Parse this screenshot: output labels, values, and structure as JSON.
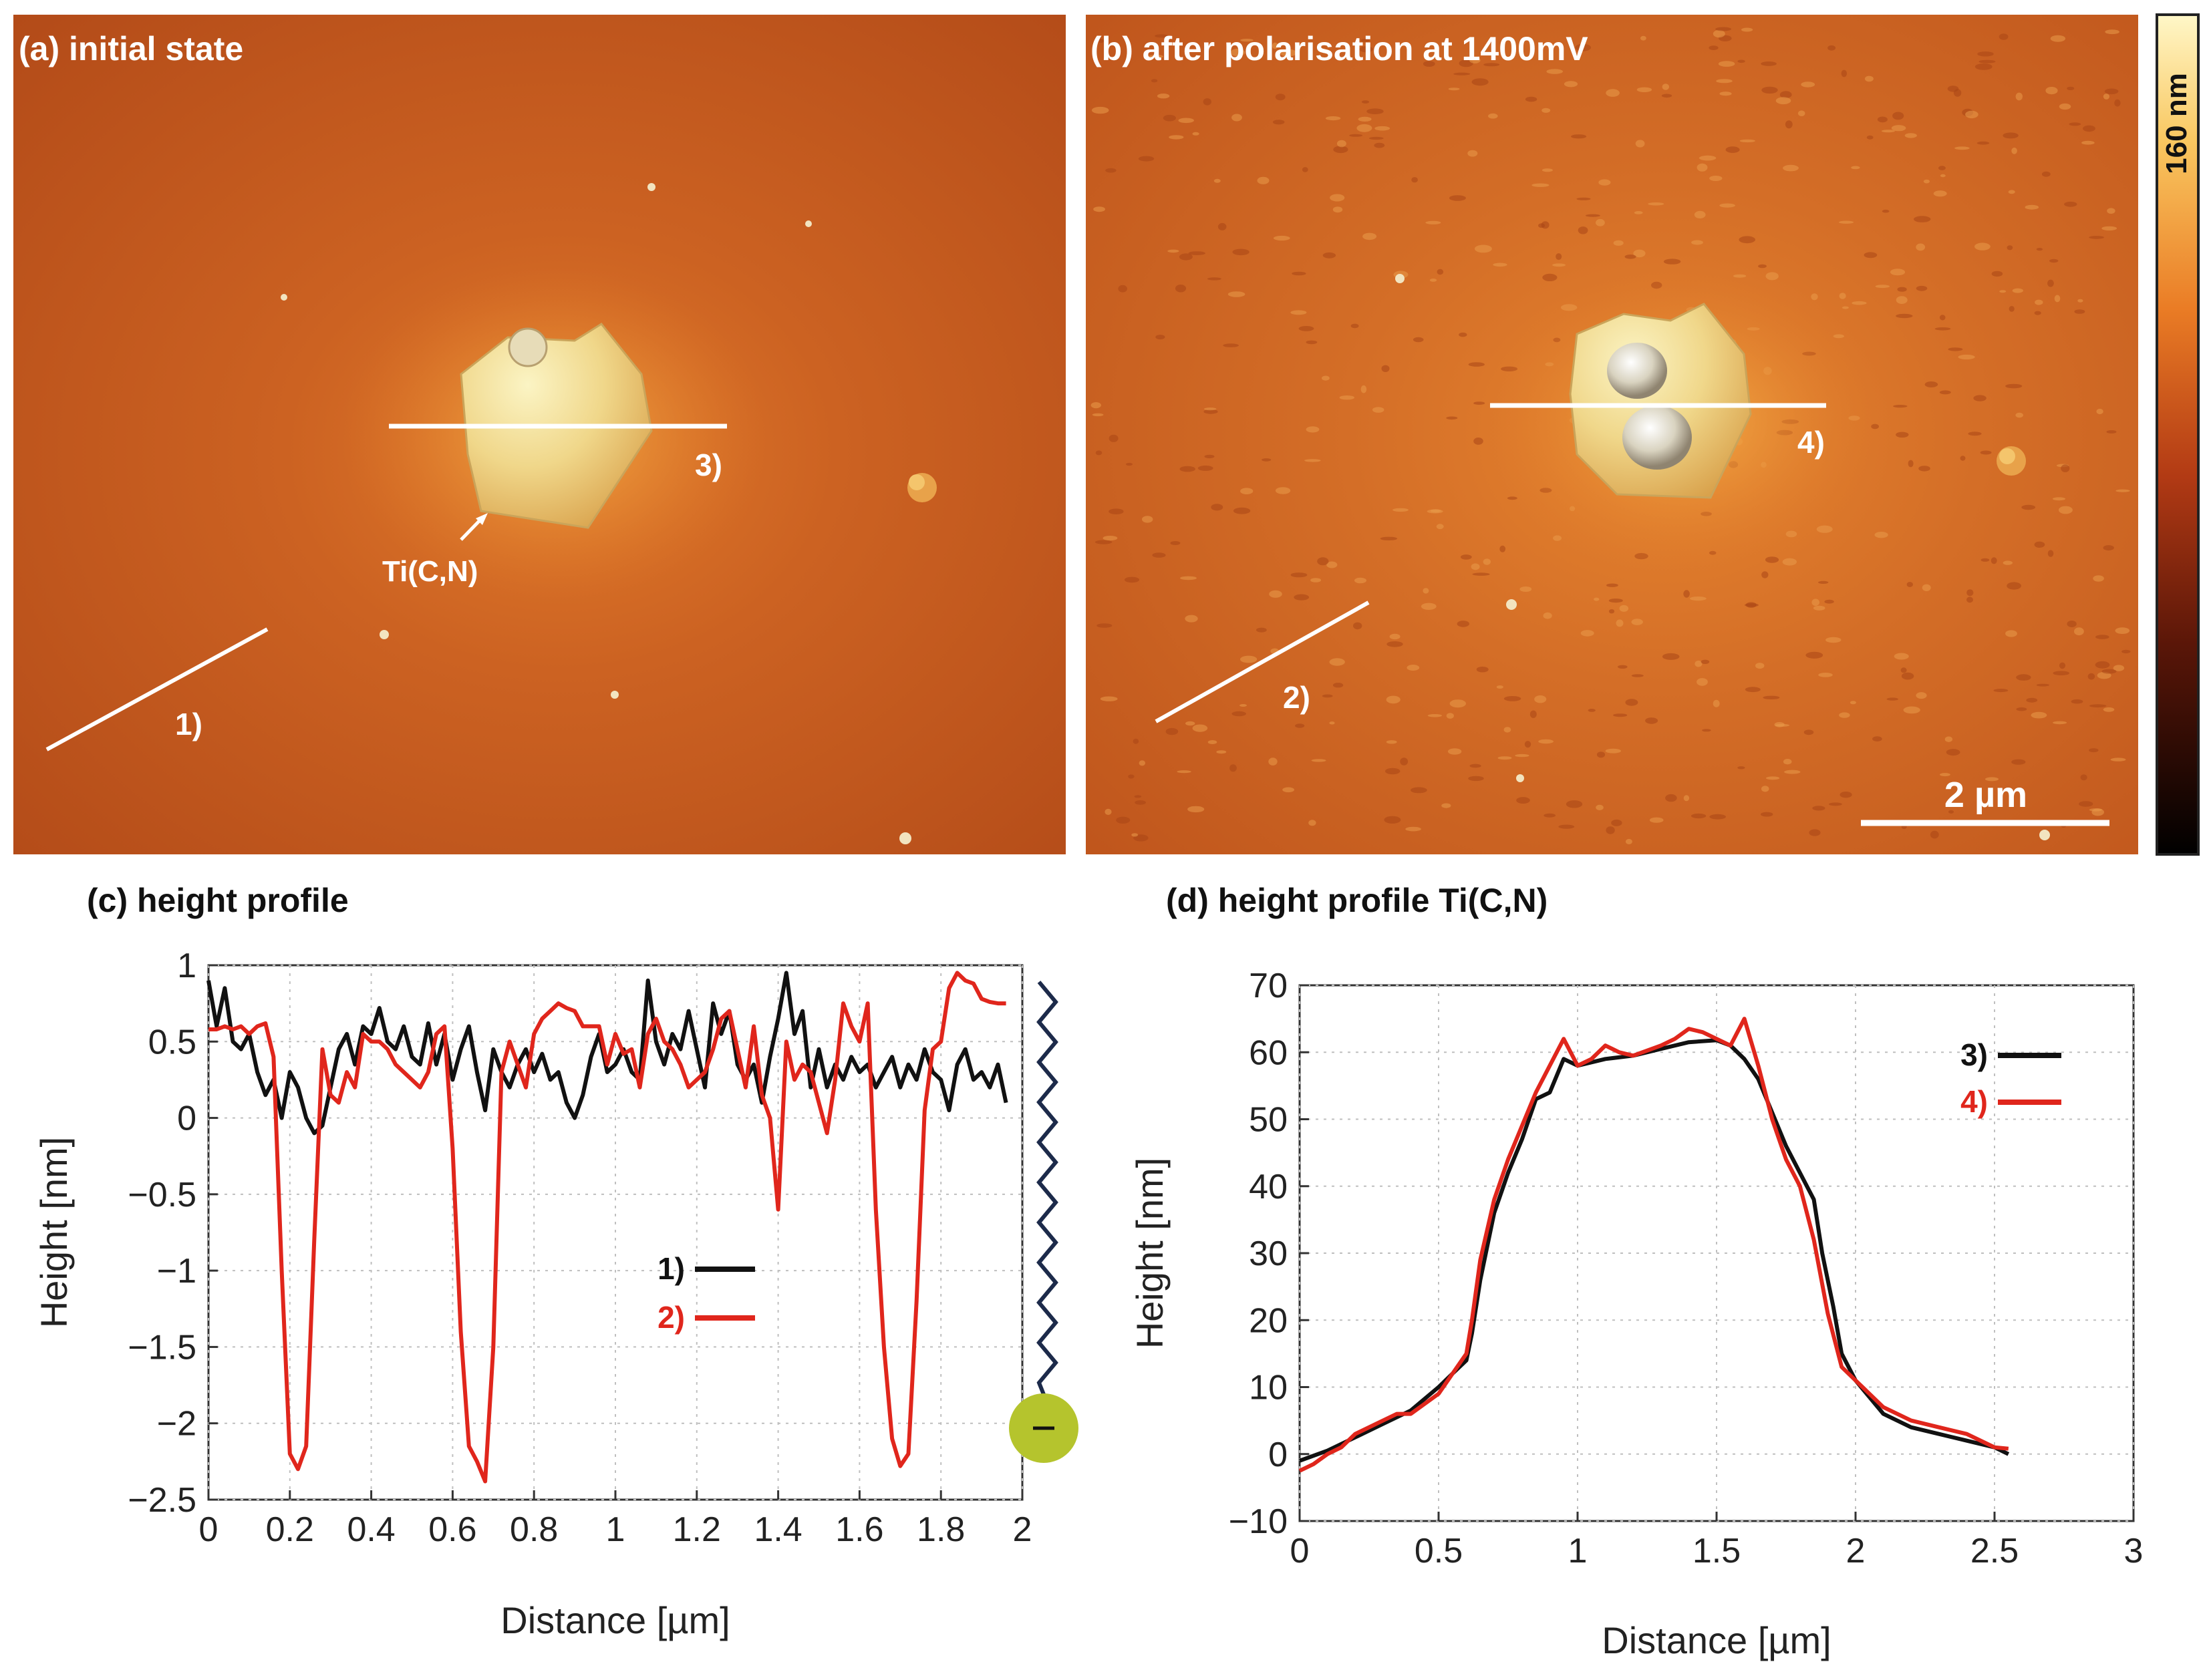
{
  "panels": {
    "a": {
      "label": "(a) initial state",
      "annotation": "Ti(C,N)",
      "line1": "1)",
      "line3": "3)"
    },
    "b": {
      "label": "(b) after polarisation at 1400mV",
      "line2": "2)",
      "line4": "4)",
      "scalebar": "2 µm"
    },
    "colorbar": {
      "label": "160 nm"
    },
    "c": {
      "label": "(c) height profile"
    },
    "d": {
      "label": "(d) height profile Ti(C,N)"
    }
  },
  "colors": {
    "black": "#111111",
    "red": "#e0261c",
    "afm_dark": "#b8521c",
    "afm_light": "#f7e9a0",
    "ball": "#b5c42d",
    "zigzag": "#1c2a4a"
  },
  "chart_data": [
    {
      "type": "line",
      "title": "(c) height profile",
      "xlabel": "Distance [µm]",
      "ylabel": "Height [nm]",
      "xlim": [
        0,
        2
      ],
      "ylim": [
        -2.5,
        1
      ],
      "xticks": [
        0,
        0.2,
        0.4,
        0.6,
        0.8,
        1,
        1.2,
        1.4,
        1.6,
        1.8,
        2
      ],
      "xtick_labels": [
        "0",
        "0.2",
        "0.4",
        "0.6",
        "0.8",
        "1",
        "1.2",
        "1.4",
        "1.6",
        "1.8",
        "2"
      ],
      "yticks": [
        1,
        0.5,
        0,
        -0.5,
        -1,
        -1.5,
        -2,
        -2.5
      ],
      "ytick_labels": [
        "1",
        "0.5",
        "0",
        "−0.5",
        "−1",
        "−1.5",
        "−2",
        "−2.5"
      ],
      "legend": "center-right",
      "series": [
        {
          "name": "1)",
          "color": "#111111",
          "x": [
            0,
            0.02,
            0.04,
            0.06,
            0.08,
            0.1,
            0.12,
            0.14,
            0.16,
            0.18,
            0.2,
            0.22,
            0.24,
            0.26,
            0.28,
            0.3,
            0.32,
            0.34,
            0.36,
            0.38,
            0.4,
            0.42,
            0.44,
            0.46,
            0.48,
            0.5,
            0.52,
            0.54,
            0.56,
            0.58,
            0.6,
            0.62,
            0.64,
            0.66,
            0.68,
            0.7,
            0.72,
            0.74,
            0.76,
            0.78,
            0.8,
            0.82,
            0.84,
            0.86,
            0.88,
            0.9,
            0.92,
            0.94,
            0.96,
            0.98,
            1,
            1.02,
            1.04,
            1.06,
            1.08,
            1.1,
            1.12,
            1.14,
            1.16,
            1.18,
            1.2,
            1.22,
            1.24,
            1.26,
            1.28,
            1.3,
            1.32,
            1.34,
            1.36,
            1.38,
            1.4,
            1.42,
            1.44,
            1.46,
            1.48,
            1.5,
            1.52,
            1.54,
            1.56,
            1.58,
            1.6,
            1.62,
            1.64,
            1.66,
            1.68,
            1.7,
            1.72,
            1.74,
            1.76,
            1.78,
            1.8,
            1.82,
            1.84,
            1.86,
            1.88,
            1.9,
            1.92,
            1.94,
            1.96
          ],
          "y": [
            0.9,
            0.6,
            0.85,
            0.5,
            0.45,
            0.55,
            0.3,
            0.15,
            0.25,
            0.0,
            0.3,
            0.2,
            0.0,
            -0.1,
            -0.05,
            0.2,
            0.45,
            0.55,
            0.35,
            0.6,
            0.55,
            0.72,
            0.5,
            0.45,
            0.6,
            0.4,
            0.35,
            0.62,
            0.35,
            0.55,
            0.25,
            0.45,
            0.6,
            0.3,
            0.05,
            0.45,
            0.3,
            0.2,
            0.35,
            0.45,
            0.3,
            0.42,
            0.25,
            0.3,
            0.1,
            0.0,
            0.15,
            0.4,
            0.55,
            0.3,
            0.35,
            0.45,
            0.3,
            0.25,
            0.9,
            0.5,
            0.35,
            0.55,
            0.45,
            0.7,
            0.45,
            0.2,
            0.75,
            0.55,
            0.7,
            0.35,
            0.25,
            0.35,
            0.1,
            0.4,
            0.65,
            0.95,
            0.55,
            0.7,
            0.2,
            0.45,
            0.2,
            0.35,
            0.25,
            0.4,
            0.3,
            0.35,
            0.2,
            0.3,
            0.4,
            0.2,
            0.35,
            0.25,
            0.45,
            0.3,
            0.25,
            0.05,
            0.35,
            0.45,
            0.25,
            0.3,
            0.2,
            0.35,
            0.1
          ]
        },
        {
          "name": "2)",
          "color": "#e0261c",
          "x": [
            0,
            0.02,
            0.04,
            0.06,
            0.08,
            0.1,
            0.12,
            0.14,
            0.16,
            0.18,
            0.2,
            0.22,
            0.24,
            0.26,
            0.28,
            0.3,
            0.32,
            0.34,
            0.36,
            0.38,
            0.4,
            0.42,
            0.44,
            0.46,
            0.48,
            0.5,
            0.52,
            0.54,
            0.56,
            0.58,
            0.6,
            0.62,
            0.64,
            0.66,
            0.68,
            0.7,
            0.72,
            0.74,
            0.76,
            0.78,
            0.8,
            0.82,
            0.84,
            0.86,
            0.88,
            0.9,
            0.92,
            0.94,
            0.96,
            0.98,
            1,
            1.02,
            1.04,
            1.06,
            1.08,
            1.1,
            1.12,
            1.14,
            1.16,
            1.18,
            1.2,
            1.22,
            1.24,
            1.26,
            1.28,
            1.3,
            1.32,
            1.34,
            1.36,
            1.38,
            1.4,
            1.42,
            1.44,
            1.46,
            1.48,
            1.5,
            1.52,
            1.54,
            1.56,
            1.58,
            1.6,
            1.62,
            1.64,
            1.66,
            1.68,
            1.7,
            1.72,
            1.74,
            1.76,
            1.78,
            1.8,
            1.82,
            1.84,
            1.86,
            1.88,
            1.9,
            1.92,
            1.94,
            1.96
          ],
          "y": [
            0.58,
            0.58,
            0.6,
            0.58,
            0.6,
            0.55,
            0.6,
            0.62,
            0.4,
            -1.0,
            -2.2,
            -2.3,
            -2.15,
            -0.8,
            0.45,
            0.15,
            0.1,
            0.3,
            0.2,
            0.55,
            0.5,
            0.5,
            0.45,
            0.35,
            0.3,
            0.25,
            0.2,
            0.3,
            0.55,
            0.6,
            -0.2,
            -1.4,
            -2.15,
            -2.25,
            -2.38,
            -1.5,
            0.3,
            0.5,
            0.35,
            0.2,
            0.55,
            0.65,
            0.7,
            0.75,
            0.72,
            0.7,
            0.6,
            0.6,
            0.6,
            0.35,
            0.55,
            0.42,
            0.45,
            0.2,
            0.55,
            0.65,
            0.5,
            0.45,
            0.35,
            0.2,
            0.25,
            0.3,
            0.45,
            0.65,
            0.7,
            0.45,
            0.2,
            0.6,
            0.15,
            0.0,
            -0.6,
            0.5,
            0.25,
            0.35,
            0.3,
            0.1,
            -0.1,
            0.25,
            0.75,
            0.6,
            0.5,
            0.75,
            -0.6,
            -1.5,
            -2.1,
            -2.28,
            -2.2,
            -1.2,
            0.05,
            0.45,
            0.5,
            0.85,
            0.95,
            0.9,
            0.88,
            0.78,
            0.76,
            0.75,
            0.75
          ]
        }
      ]
    },
    {
      "type": "line",
      "title": "(d) height profile Ti(C,N)",
      "xlabel": "Distance [µm]",
      "ylabel": "Height [nm]",
      "xlim": [
        0,
        3
      ],
      "ylim": [
        -10,
        70
      ],
      "xticks": [
        0,
        0.5,
        1,
        1.5,
        2,
        2.5,
        3
      ],
      "xtick_labels": [
        "0",
        "0.5",
        "1",
        "1.5",
        "2",
        "2.5",
        "3"
      ],
      "yticks": [
        70,
        60,
        50,
        40,
        30,
        20,
        10,
        0,
        -10
      ],
      "ytick_labels": [
        "70",
        "60",
        "50",
        "40",
        "30",
        "20",
        "10",
        "0",
        "−10"
      ],
      "legend": "top-right",
      "series": [
        {
          "name": "3)",
          "color": "#111111",
          "x": [
            0,
            0.1,
            0.2,
            0.3,
            0.4,
            0.5,
            0.55,
            0.6,
            0.62,
            0.65,
            0.7,
            0.75,
            0.8,
            0.85,
            0.9,
            0.95,
            1,
            1.05,
            1.1,
            1.2,
            1.3,
            1.4,
            1.5,
            1.55,
            1.6,
            1.65,
            1.7,
            1.75,
            1.8,
            1.85,
            1.88,
            1.92,
            1.95,
            2,
            2.1,
            2.2,
            2.3,
            2.4,
            2.5,
            2.55
          ],
          "y": [
            -1,
            0.5,
            2.5,
            4.5,
            6.5,
            10,
            12,
            14,
            18,
            26,
            36,
            42,
            47,
            53,
            54,
            59,
            58,
            58.5,
            59,
            59.5,
            60.5,
            61.5,
            61.8,
            61,
            59,
            56,
            51,
            46,
            42,
            38,
            30,
            22,
            15,
            11,
            6,
            4,
            3,
            2,
            1,
            0
          ]
        },
        {
          "name": "4)",
          "color": "#e0261c",
          "x": [
            0,
            0.05,
            0.1,
            0.15,
            0.2,
            0.3,
            0.35,
            0.4,
            0.5,
            0.55,
            0.6,
            0.62,
            0.65,
            0.7,
            0.75,
            0.8,
            0.85,
            0.9,
            0.95,
            1,
            1.05,
            1.1,
            1.15,
            1.2,
            1.3,
            1.35,
            1.4,
            1.45,
            1.5,
            1.55,
            1.6,
            1.65,
            1.7,
            1.75,
            1.8,
            1.85,
            1.9,
            1.95,
            2,
            2.1,
            2.2,
            2.3,
            2.4,
            2.5,
            2.55
          ],
          "y": [
            -2.5,
            -1.5,
            0,
            1,
            3,
            5,
            6,
            6,
            9,
            12,
            15,
            20,
            29,
            38,
            44,
            49,
            54,
            58,
            62,
            58,
            59,
            61,
            60,
            59.5,
            61,
            62,
            63.5,
            63,
            62,
            61,
            65,
            58,
            50,
            44,
            40,
            32,
            21,
            13,
            11,
            7,
            5,
            4,
            3,
            1,
            0.8
          ]
        }
      ]
    }
  ]
}
